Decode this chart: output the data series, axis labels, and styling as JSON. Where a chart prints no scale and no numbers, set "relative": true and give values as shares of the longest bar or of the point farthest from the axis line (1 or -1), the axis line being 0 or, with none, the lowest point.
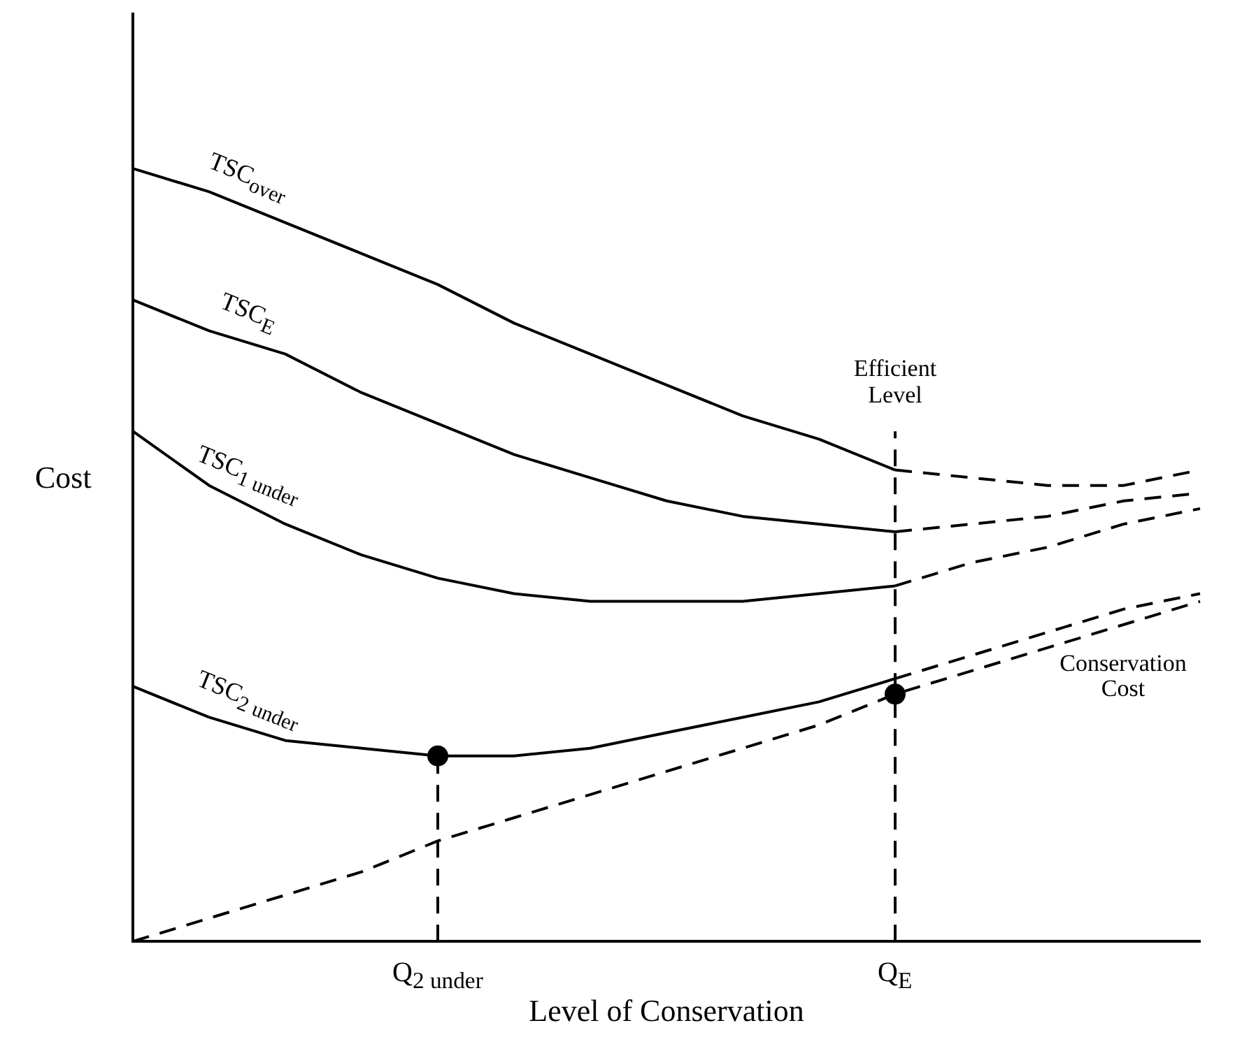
{
  "chart_data": {
    "type": "line",
    "relative": true,
    "xlabel": "Level of Conservation",
    "ylabel": "Cost",
    "legend": false,
    "marker": "none",
    "categories": [
      null,
      null,
      null,
      null,
      "Q$_{2 under}$",
      null,
      null,
      null,
      null,
      null,
      "Q$_{E}$",
      null,
      null,
      null,
      null
    ],
    "annotations": [
      "Efficient Level"
    ],
    "series": [
      {
        "name": "TSC$_{over}$",
        "color": "#000000",
        "line_style": "solid",
        "values": [
          1.0,
          0.97,
          0.93,
          0.89,
          0.85,
          0.8,
          0.76,
          0.72,
          0.68,
          0.65,
          0.61,
          null,
          null,
          null,
          null
        ]
      },
      {
        "color": "#000000",
        "line_style": "dashed",
        "values": [
          null,
          null,
          null,
          null,
          null,
          null,
          null,
          null,
          null,
          null,
          0.61,
          0.6,
          0.59,
          0.59,
          0.61
        ]
      },
      {
        "name": "TSC$_{E}$",
        "color": "#000000",
        "line_style": "solid",
        "values": [
          0.83,
          0.79,
          0.76,
          0.71,
          0.67,
          0.63,
          0.6,
          0.57,
          0.55,
          0.54,
          0.53,
          null,
          null,
          null,
          null
        ]
      },
      {
        "color": "#000000",
        "line_style": "dashed",
        "values": [
          null,
          null,
          null,
          null,
          null,
          null,
          null,
          null,
          null,
          null,
          0.53,
          0.54,
          0.55,
          0.57,
          0.58
        ]
      },
      {
        "name": "TSC$_{1 under}$",
        "color": "#000000",
        "line_style": "solid",
        "values": [
          0.66,
          0.59,
          0.54,
          0.5,
          0.47,
          0.45,
          0.44,
          0.44,
          0.44,
          0.45,
          0.46,
          null,
          null,
          null,
          null
        ]
      },
      {
        "color": "#000000",
        "line_style": "dashed",
        "values": [
          null,
          null,
          null,
          null,
          null,
          null,
          null,
          null,
          null,
          null,
          0.46,
          0.49,
          0.51,
          0.54,
          0.56
        ]
      },
      {
        "name": "TSC$_{2 under}$",
        "color": "#000000",
        "line_style": "solid",
        "values": [
          0.33,
          0.29,
          0.26,
          0.25,
          0.24,
          0.24,
          0.25,
          0.27,
          0.29,
          0.31,
          0.34,
          null,
          null,
          null,
          null
        ]
      },
      {
        "color": "#000000",
        "line_style": "dashed",
        "values": [
          null,
          null,
          null,
          null,
          null,
          null,
          null,
          null,
          null,
          null,
          0.34,
          0.37,
          0.4,
          0.43,
          0.45
        ]
      },
      {
        "name": "Conservation Cost",
        "color": "#000000",
        "line_style": "dashed",
        "values": [
          0,
          0.03,
          0.06,
          0.09,
          0.13,
          0.16,
          0.19,
          0.22,
          0.25,
          0.28,
          0.32,
          0.35,
          0.38,
          0.41,
          0.44
        ]
      },
      {
        "color": "#000000",
        "line_style": "dashed",
        "x": [
          "Q$_{2 under}$",
          "Q$_{2 under}$"
        ],
        "values": [
          0,
          0.24
        ]
      },
      {
        "color": "#000000",
        "line_style": "dashed",
        "x": [
          "Q$_{E}$",
          "Q$_{E}$"
        ],
        "values": [
          0,
          0.66
        ]
      },
      {
        "type": "scatter",
        "marker": "circle",
        "color": "#000000",
        "values": [
          null,
          null,
          null,
          null,
          0.24,
          null,
          null,
          null,
          null,
          null,
          0.32,
          null,
          null,
          null,
          null
        ]
      }
    ]
  }
}
